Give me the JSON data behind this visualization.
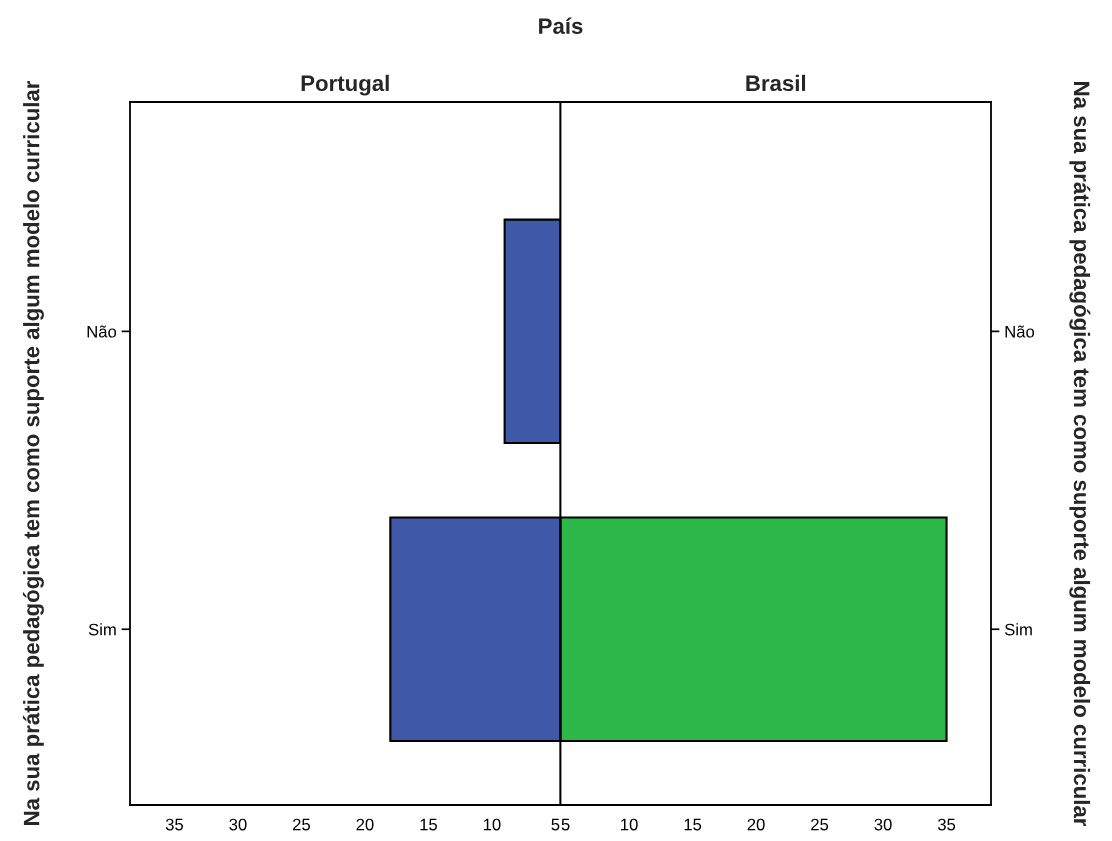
{
  "chart_data": [
    {
      "type": "bar",
      "orientation": "horizontal",
      "title": "Portugal",
      "annotations": [
        "País"
      ],
      "ylabel": "Na sua prática pedagógica tem como suporte algum modelo curricular",
      "categories": [
        "Não",
        "Sim"
      ],
      "values": [
        9,
        18
      ],
      "color": "#3f58a8",
      "xlim": [
        38.5,
        4.6
      ],
      "xticks": [
        35,
        30,
        25,
        20,
        15,
        10,
        5
      ],
      "grid": false,
      "legend": false
    },
    {
      "type": "bar",
      "orientation": "horizontal",
      "title": "Brasil",
      "y2label": "Na sua prática pedagógica tem como suporte algum modelo curricular",
      "categories": [
        "Não",
        "Sim"
      ],
      "values": [
        null,
        35
      ],
      "color": "#2eb84a",
      "xlim": [
        4.6,
        38.5
      ],
      "xticks": [
        5,
        10,
        15,
        20,
        25,
        30,
        35
      ],
      "grid": false,
      "legend": false
    }
  ]
}
